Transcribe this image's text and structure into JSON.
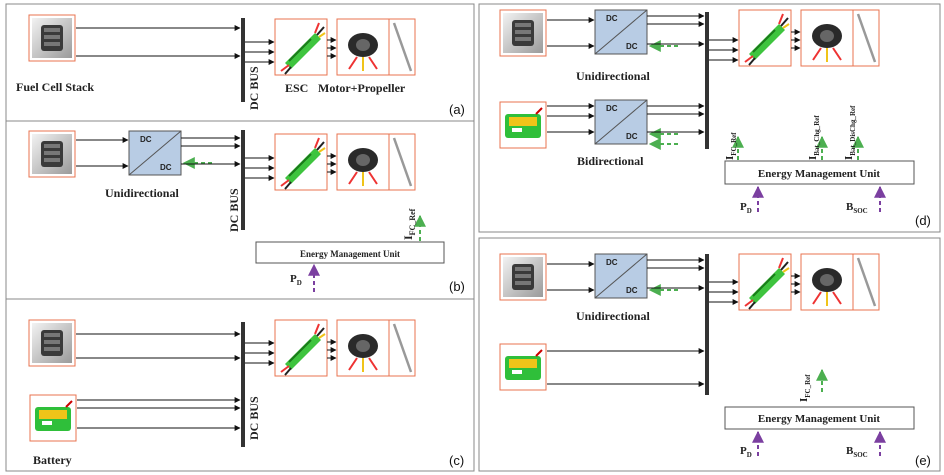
{
  "panels": {
    "a": {
      "tag": "(a)",
      "fuel_cell_label": "Fuel Cell Stack",
      "bus_label": "DC BUS",
      "esc_label": "ESC",
      "motor_label": "Motor+Propeller"
    },
    "b": {
      "tag": "(b)",
      "converter_label": "Unidirectional",
      "bus_label": "DC BUS",
      "emu_label": "Energy Management Unit",
      "ifc": "I",
      "ifc_sub": "FC_Ref",
      "pd": "P",
      "pd_sub": "D"
    },
    "c": {
      "tag": "(c)",
      "battery_label": "Battery",
      "bus_label": "DC BUS"
    },
    "d": {
      "tag": "(d)",
      "converter1_label": "Unidirectional",
      "converter2_label": "Bidirectional",
      "emu_label": "Energy Management Unit",
      "ifc": "I",
      "ifc_sub": "FC_Ref",
      "ichg": "I",
      "ichg_sub": "Bat_Chg_Ref",
      "idis": "I",
      "idis_sub": "Bat_DisChg_Ref",
      "pd": "P",
      "pd_sub": "D",
      "bsoc": "B",
      "bsoc_sub": "SOC"
    },
    "e": {
      "tag": "(e)",
      "converter_label": "Unidirectional",
      "emu_label": "Energy Management Unit",
      "ifc": "I",
      "ifc_sub": "FC_Ref",
      "pd": "P",
      "pd_sub": "D",
      "bsoc": "B",
      "bsoc_sub": "SOC"
    }
  },
  "converter_text": {
    "top": "DC",
    "bottom": "DC"
  },
  "colors": {
    "converter_fill": "#b8cce4",
    "block_border": "#e8734f",
    "signal_green": "#4caf50",
    "signal_purple": "#7b3fa0",
    "bus": "#333333"
  }
}
